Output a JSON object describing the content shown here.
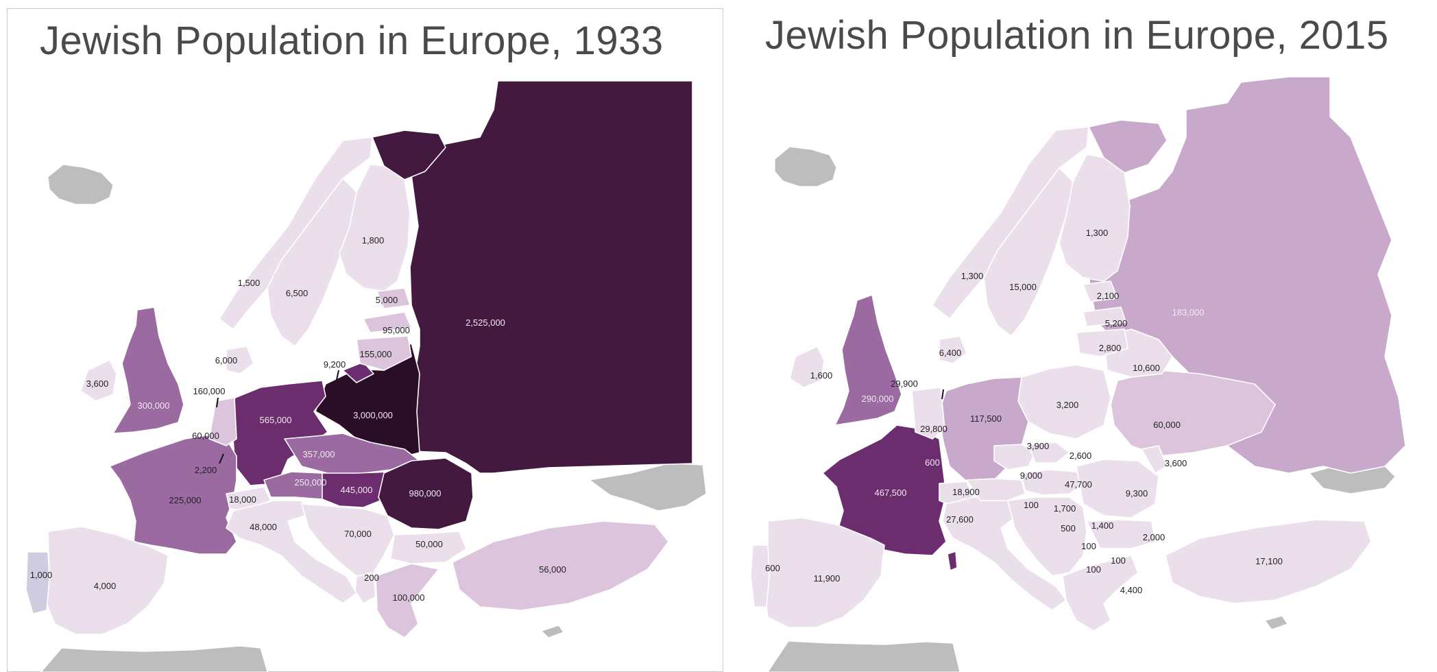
{
  "colors": {
    "c1": "#ebdfeb",
    "c2": "#dcc5dc",
    "c3": "#c8a8cb",
    "c4": "#9a6aa1",
    "c5": "#6b2d6e",
    "c6": "#441940",
    "c7": "#2a0d26",
    "nodata": "#bdbdbd",
    "portugal_1933": "#cfcce0"
  },
  "map_1933": {
    "title": "Jewish Population in Europe, 1933",
    "labels": {
      "ussr": "2,525,000",
      "poland": "3,000,000",
      "germany": "565,000",
      "czechoslovakia": "357,000",
      "austria": "250,000",
      "hungary": "445,000",
      "romania": "980,000",
      "uk": "300,000",
      "france": "225,000",
      "ireland": "3,600",
      "netherlands": "160,000",
      "belgium": "60,000",
      "luxembourg": "2,200",
      "switzerland": "18,000",
      "italy": "48,000",
      "yugoslavia": "70,000",
      "bulgaria": "50,000",
      "albania": "200",
      "greece": "100,000",
      "turkey": "56,000",
      "spain": "4,000",
      "portugal": "1,000",
      "norway": "1,500",
      "sweden": "6,500",
      "finland": "1,800",
      "denmark": "6,000",
      "estonia": "5,000",
      "latvia": "95,000",
      "lithuania": "155,000",
      "danzig": "9,200"
    }
  },
  "map_2015": {
    "title": "Jewish Population in Europe, 2015",
    "labels": {
      "russia": "183,000",
      "ukraine": "60,000",
      "belarus": "10,600",
      "poland": "3,200",
      "germany": "117,500",
      "france": "467,500",
      "uk": "290,000",
      "ireland": "1,600",
      "netherlands": "29,900",
      "belgium": "29,800",
      "luxembourg": "600",
      "switzerland": "18,900",
      "italy": "27,600",
      "austria": "9,000",
      "czech": "3,900",
      "slovakia": "2,600",
      "hungary": "47,700",
      "romania": "9,300",
      "moldova": "3,600",
      "bulgaria": "2,000",
      "serbia": "1,400",
      "croatia": "1,700",
      "bosnia": "500",
      "slovenia": "100",
      "montenegro": "100",
      "macedonia": "100",
      "albania": "100",
      "greece": "4,400",
      "turkey": "17,100",
      "spain": "11,900",
      "portugal": "600",
      "norway": "1,300",
      "sweden": "15,000",
      "finland": "1,300",
      "denmark": "6,400",
      "estonia": "2,100",
      "latvia": "5,200",
      "lithuania": "2,800"
    }
  }
}
